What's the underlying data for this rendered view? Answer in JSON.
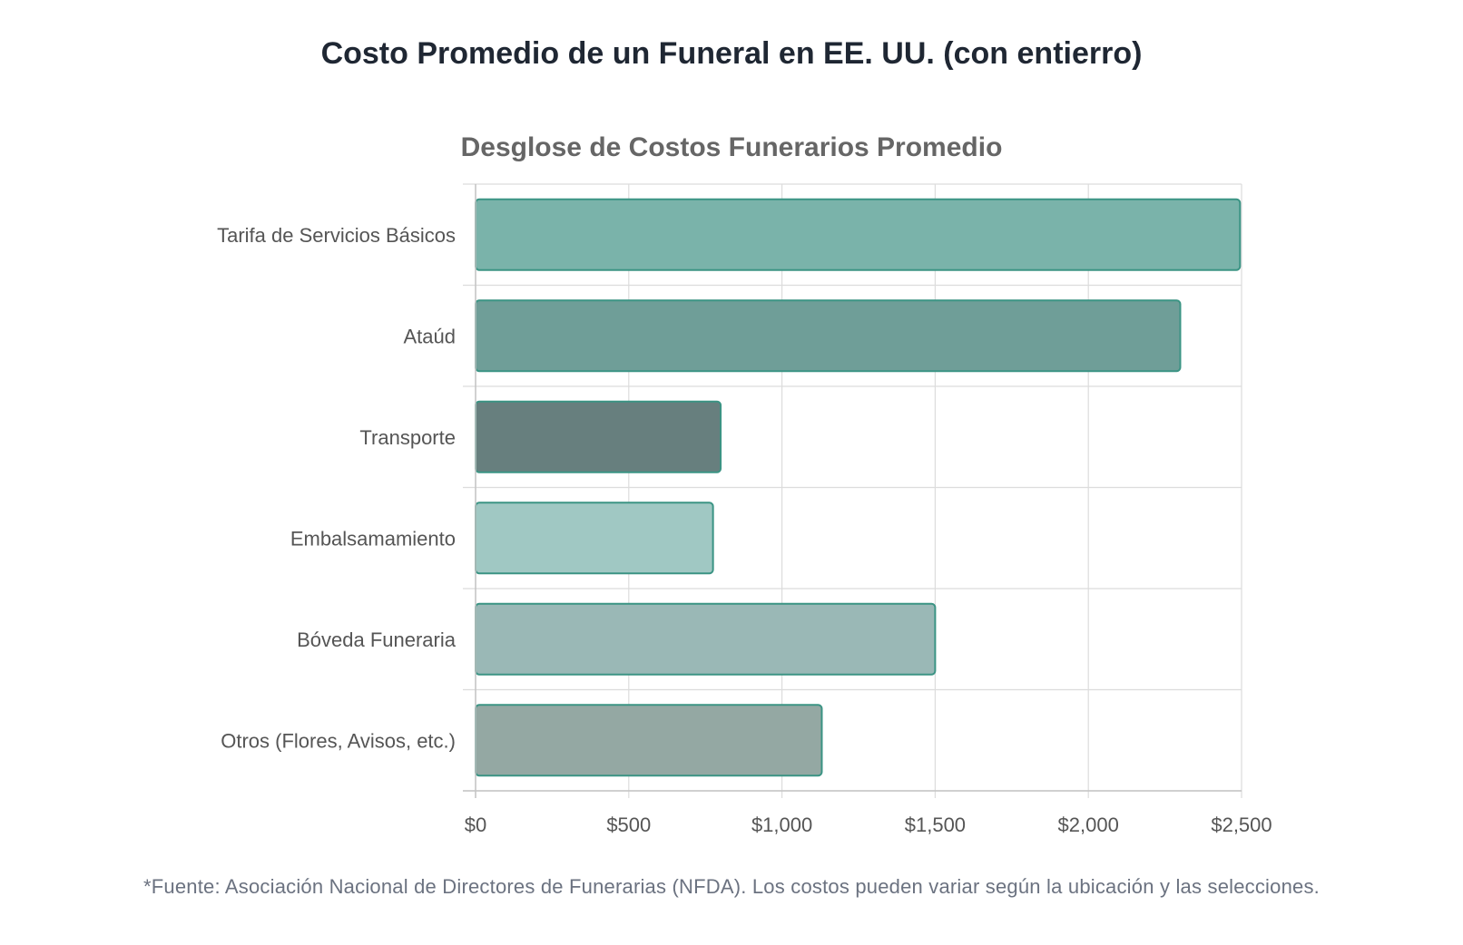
{
  "page": {
    "title": "Costo Promedio de un Funeral en EE. UU. (con entierro)",
    "footnote": "*Fuente: Asociación Nacional de Directores de Funerarias (NFDA). Los costos pueden variar según la ubicación y las selecciones."
  },
  "chart_data": {
    "type": "bar",
    "orientation": "horizontal",
    "title": "Desglose de Costos Funerarios Promedio",
    "xlabel": "",
    "ylabel": "",
    "categories": [
      "Tarifa de Servicios Básicos",
      "Ataúd",
      "Transporte",
      "Embalsamamiento",
      "Bóveda Funeraria",
      "Otros (Flores, Avisos, etc.)"
    ],
    "values": [
      2495,
      2300,
      800,
      775,
      1500,
      1130
    ],
    "xlim": [
      0,
      2500
    ],
    "ticks": [
      0,
      500,
      1000,
      1500,
      2000,
      2500
    ],
    "tick_labels": [
      "$0",
      "$500",
      "$1,000",
      "$1,500",
      "$2,000",
      "$2,500"
    ],
    "bar_colors": [
      "#7ab3aa",
      "#6f9e98",
      "#677f7e",
      "#a0c8c3",
      "#9ab8b6",
      "#94a8a3"
    ],
    "bar_border_color": "#3b9484",
    "grid": true,
    "legend": "none"
  }
}
